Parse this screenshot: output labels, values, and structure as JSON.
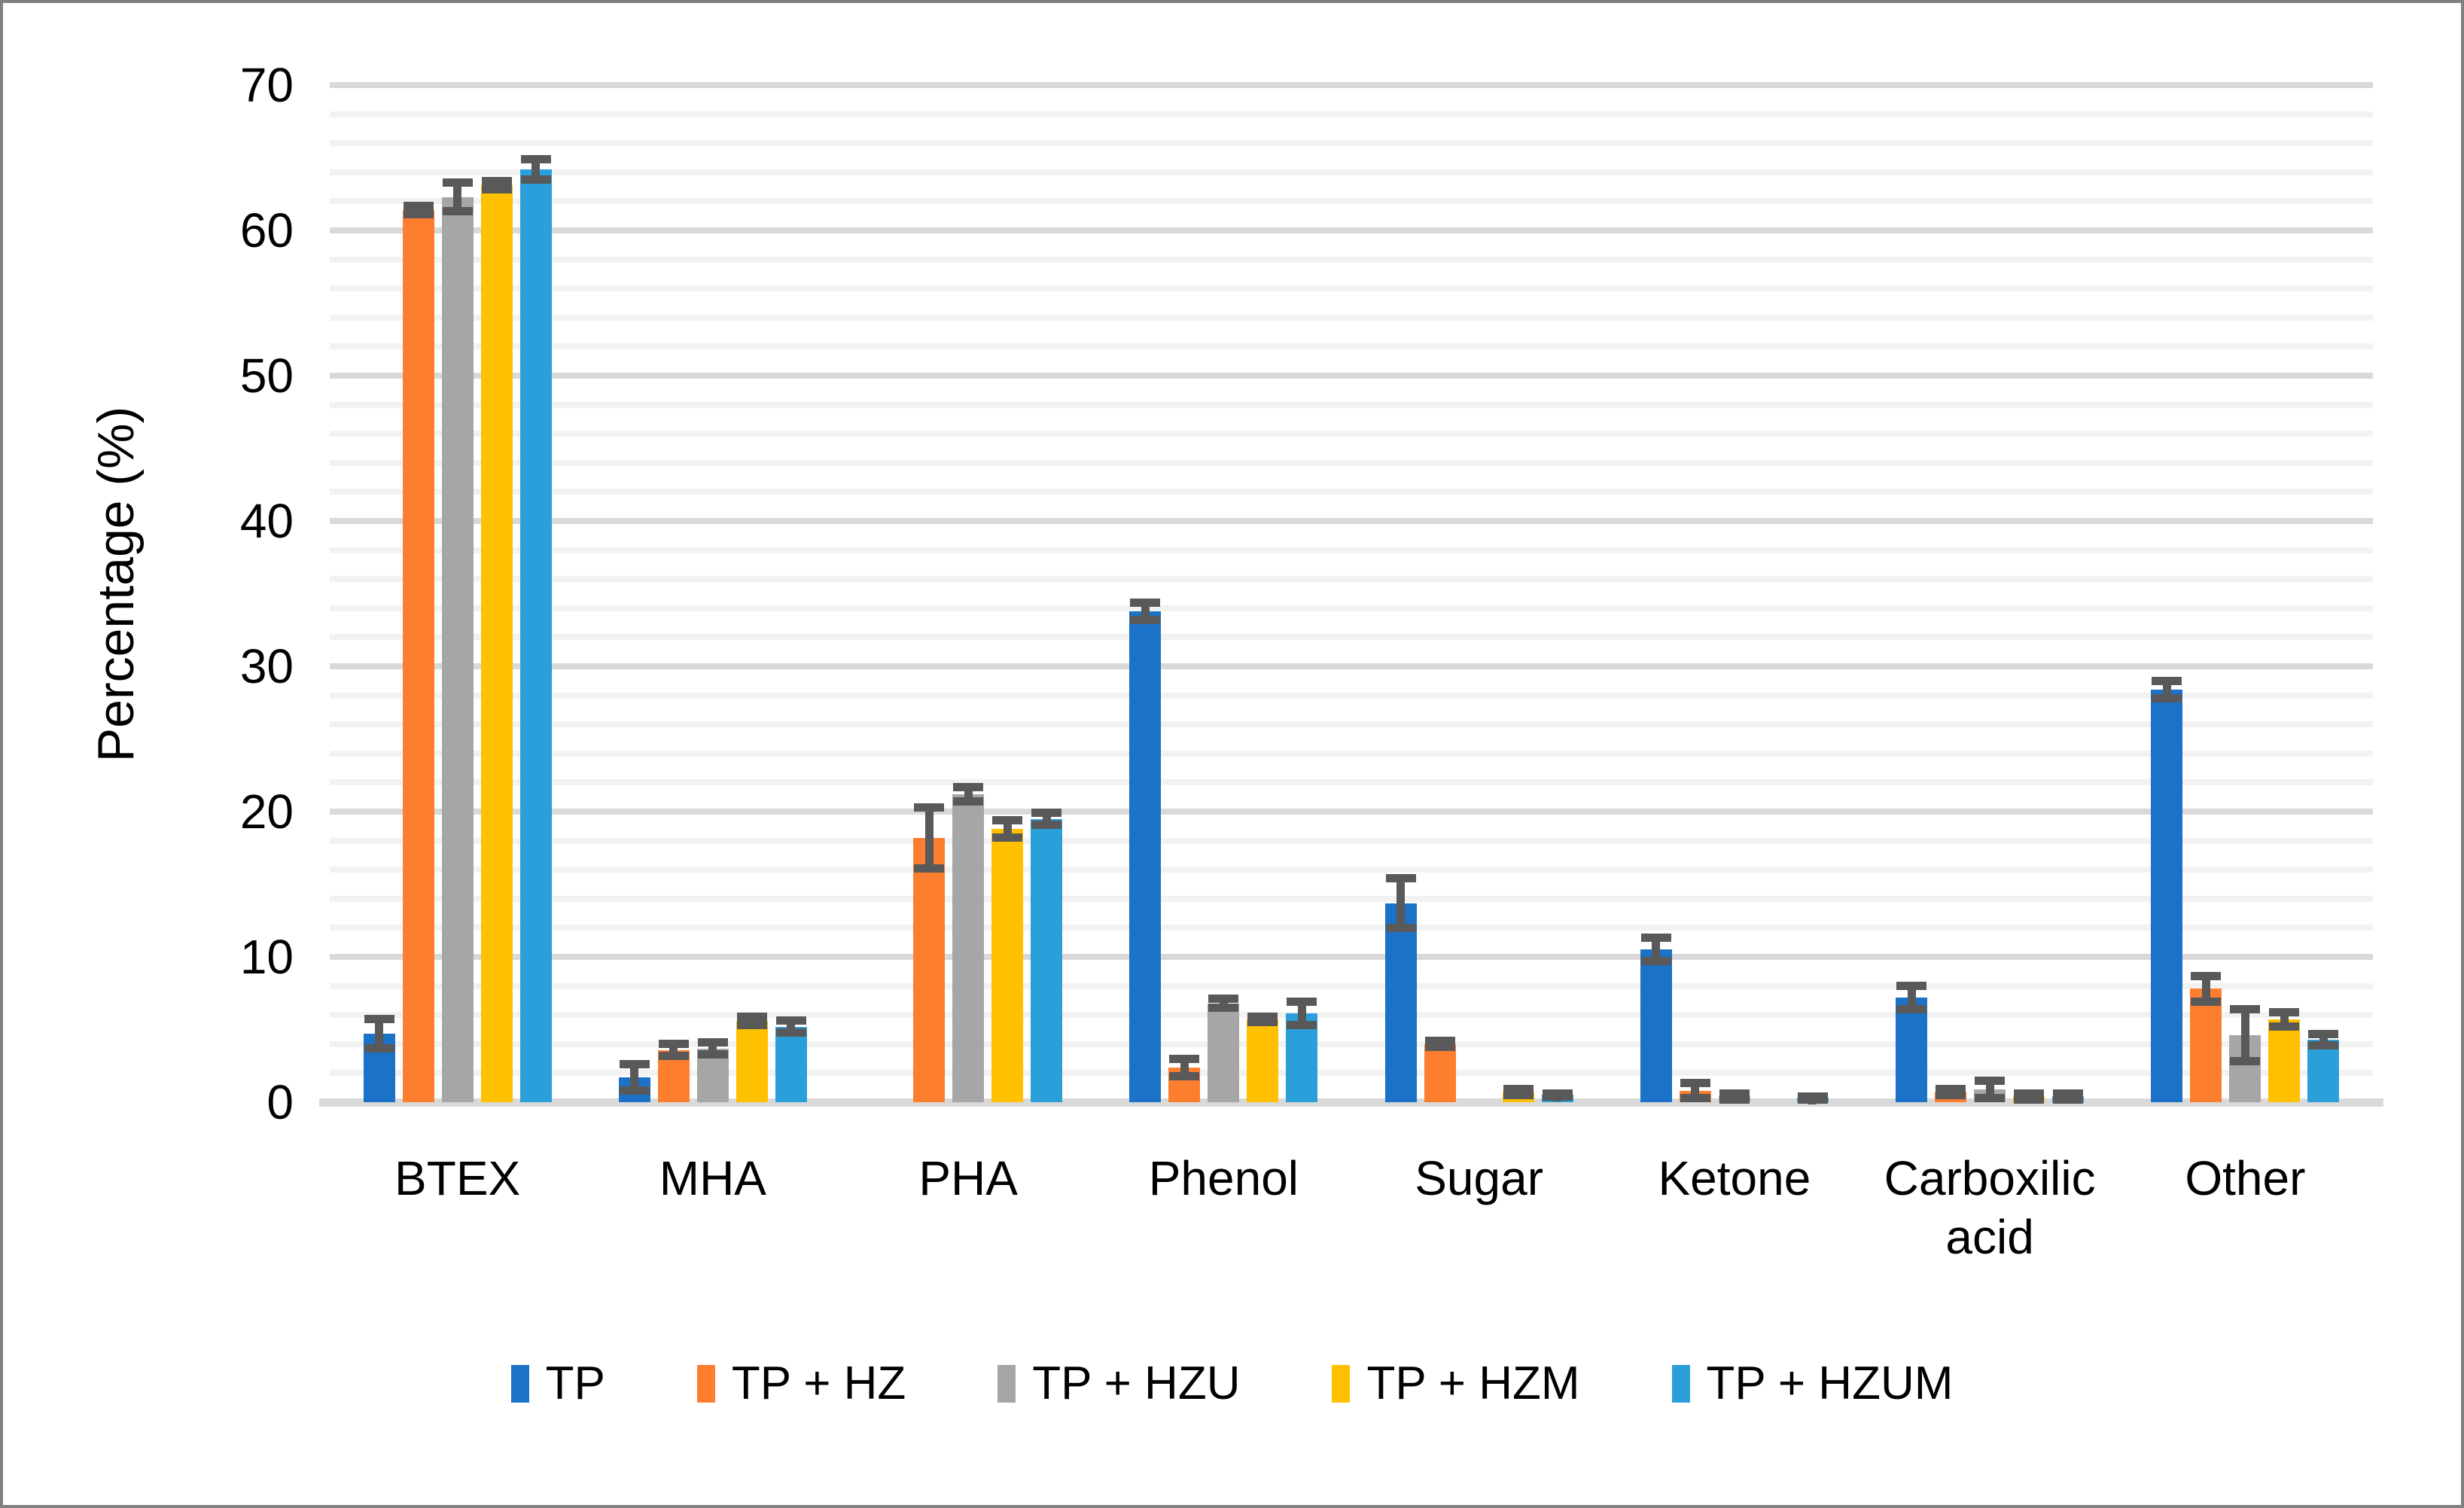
{
  "figure": {
    "background": "#FFFFFF",
    "border_color": "#7F7F7F"
  },
  "chart_data": {
    "type": "bar",
    "title": "",
    "ylabel": "Percentage (%)",
    "xlabel": "",
    "ylim": [
      0,
      70
    ],
    "y_major_step": 10,
    "y_minor_step": 2,
    "grid": "horizontal",
    "legend_position": "bottom",
    "y_tick_labels": [
      "0",
      "10",
      "20",
      "30",
      "40",
      "50",
      "60",
      "70"
    ],
    "categories": [
      "BTEX",
      "MHA",
      "PHA",
      "Phenol",
      "Sugar",
      "Ketone",
      "Carboxilic\nacid",
      "Other"
    ],
    "series": [
      {
        "name": "TP",
        "color": "#1C72C6",
        "values": [
          4.7,
          1.7,
          0,
          33.8,
          13.7,
          10.5,
          7.2,
          28.4
        ],
        "errors": [
          1.0,
          0.9,
          0,
          0.6,
          1.7,
          0.8,
          0.8,
          0.6
        ]
      },
      {
        "name": "TP + HZ",
        "color": "#FD7E2E",
        "values": [
          61.4,
          3.6,
          18.2,
          2.4,
          4.0,
          0.8,
          0.7,
          7.8
        ],
        "errors": [
          0.3,
          0.4,
          2.1,
          0.6,
          0.2,
          0.5,
          0.2,
          0.9
        ]
      },
      {
        "name": "TP + HZU",
        "color": "#A6A6A6",
        "values": [
          62.3,
          3.7,
          21.2,
          6.8,
          0,
          0.4,
          0.9,
          4.6
        ],
        "errors": [
          1.0,
          0.4,
          0.5,
          0.3,
          0,
          0.2,
          0.6,
          1.8
        ]
      },
      {
        "name": "TP + HZM",
        "color": "#FFC000",
        "values": [
          63.1,
          5.6,
          18.8,
          5.7,
          0.7,
          0,
          0.4,
          5.7
        ],
        "errors": [
          0.3,
          0.3,
          0.6,
          0.2,
          0.2,
          0,
          0.2,
          0.5
        ]
      },
      {
        "name": "TP + HZUM",
        "color": "#2B9FD9",
        "values": [
          64.2,
          5.2,
          19.5,
          6.1,
          0.5,
          0.3,
          0.4,
          4.3
        ],
        "errors": [
          0.7,
          0.4,
          0.4,
          0.8,
          0.1,
          0.1,
          0.2,
          0.4
        ]
      }
    ],
    "error_bar_color": "#595959",
    "gridline_major_color": "#D9D9D9",
    "gridline_minor_color": "#F2F2F2",
    "axis_line_color": "#D9D9D9",
    "text_color": "#000000"
  }
}
